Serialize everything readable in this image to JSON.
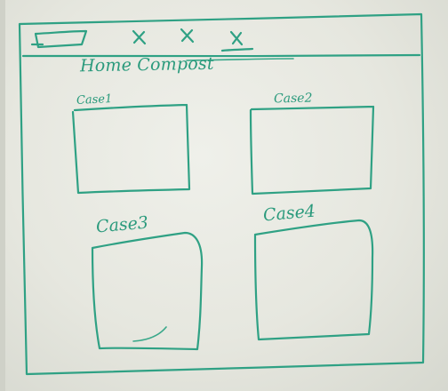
{
  "header": {
    "title": "Home Compost",
    "logo_icon": "rectangle-placeholder-icon",
    "nav_marks": [
      "x",
      "x",
      "x"
    ],
    "active_nav_index": 2
  },
  "cases": [
    {
      "label": "Case1"
    },
    {
      "label": "Case2"
    },
    {
      "label": "Case3"
    },
    {
      "label": "Case4"
    }
  ],
  "colors": {
    "marker": "#2fa184",
    "whiteboard": "#e7e8e0"
  }
}
